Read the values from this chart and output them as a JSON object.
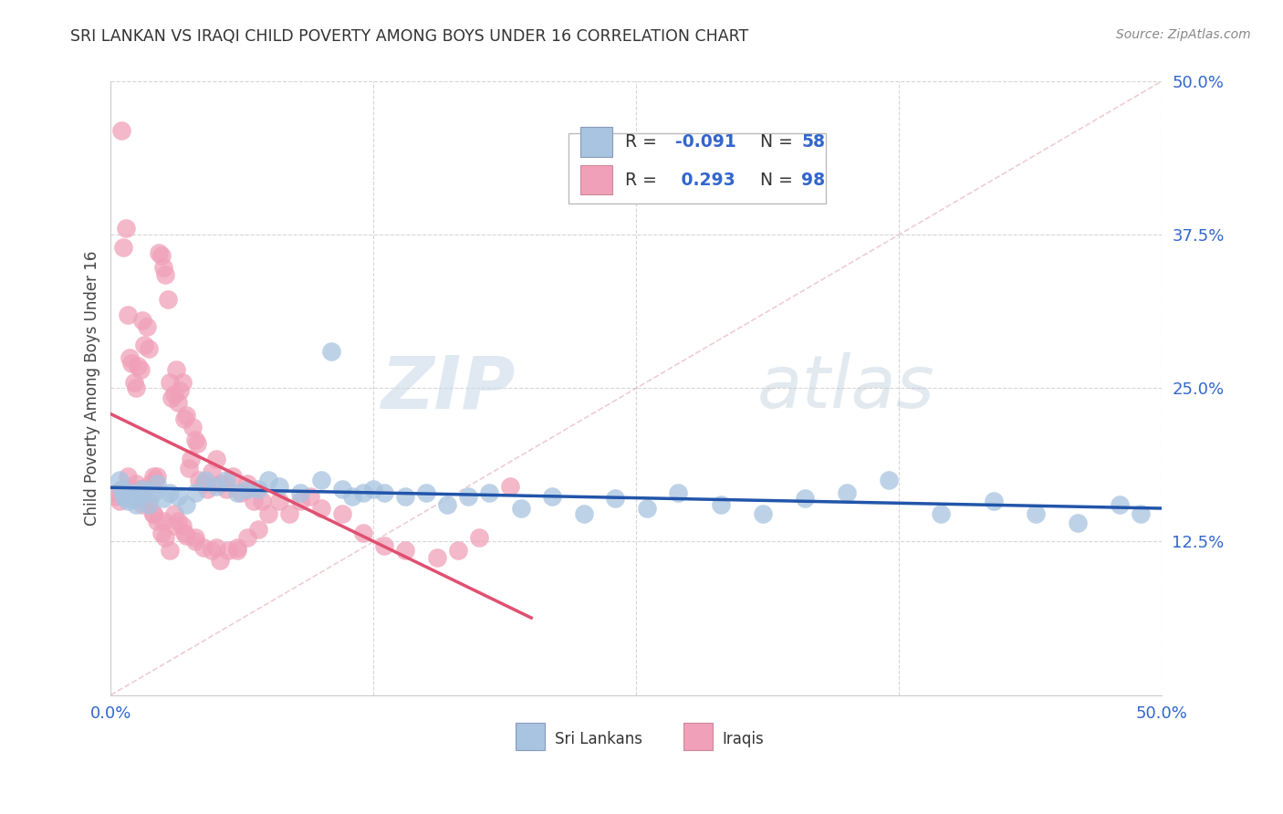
{
  "title": "SRI LANKAN VS IRAQI CHILD POVERTY AMONG BOYS UNDER 16 CORRELATION CHART",
  "source": "Source: ZipAtlas.com",
  "ylabel": "Child Poverty Among Boys Under 16",
  "xlim": [
    0.0,
    0.5
  ],
  "ylim": [
    0.0,
    0.5
  ],
  "xticks": [
    0.0,
    0.125,
    0.25,
    0.375,
    0.5
  ],
  "yticks": [
    0.0,
    0.125,
    0.25,
    0.375,
    0.5
  ],
  "xtick_labels": [
    "0.0%",
    "",
    "",
    "",
    "50.0%"
  ],
  "ytick_labels": [
    "",
    "12.5%",
    "25.0%",
    "37.5%",
    "50.0%"
  ],
  "background_color": "#ffffff",
  "grid_color": "#cccccc",
  "watermark_zip": "ZIP",
  "watermark_atlas": "atlas",
  "sri_lankan_color": "#a8c4e0",
  "iraqi_color": "#f0a0b8",
  "sri_lankan_line_color": "#2255aa",
  "iraqi_line_color": "#e05070",
  "diagonal_color": "#e8b8c0",
  "legend_r_sri": "-0.091",
  "legend_n_sri": "58",
  "legend_r_iraqi": "0.293",
  "legend_n_iraqi": "98",
  "sri_lankan_x": [
    0.004,
    0.005,
    0.006,
    0.007,
    0.008,
    0.009,
    0.01,
    0.011,
    0.012,
    0.013,
    0.015,
    0.016,
    0.018,
    0.02,
    0.022,
    0.025,
    0.028,
    0.032,
    0.036,
    0.04,
    0.045,
    0.05,
    0.055,
    0.06,
    0.065,
    0.07,
    0.075,
    0.08,
    0.09,
    0.1,
    0.105,
    0.11,
    0.115,
    0.12,
    0.125,
    0.13,
    0.14,
    0.15,
    0.16,
    0.17,
    0.18,
    0.195,
    0.21,
    0.225,
    0.24,
    0.255,
    0.27,
    0.29,
    0.31,
    0.33,
    0.35,
    0.37,
    0.395,
    0.42,
    0.44,
    0.46,
    0.48,
    0.49
  ],
  "sri_lankan_y": [
    0.175,
    0.168,
    0.162,
    0.165,
    0.158,
    0.16,
    0.165,
    0.16,
    0.155,
    0.162,
    0.168,
    0.165,
    0.155,
    0.165,
    0.172,
    0.16,
    0.165,
    0.162,
    0.155,
    0.165,
    0.175,
    0.17,
    0.175,
    0.165,
    0.168,
    0.168,
    0.175,
    0.17,
    0.165,
    0.175,
    0.28,
    0.168,
    0.162,
    0.165,
    0.168,
    0.165,
    0.162,
    0.165,
    0.155,
    0.162,
    0.165,
    0.152,
    0.162,
    0.148,
    0.16,
    0.152,
    0.165,
    0.155,
    0.148,
    0.16,
    0.165,
    0.175,
    0.148,
    0.158,
    0.148,
    0.14,
    0.155,
    0.148
  ],
  "iraqi_x": [
    0.002,
    0.003,
    0.004,
    0.005,
    0.006,
    0.007,
    0.008,
    0.009,
    0.01,
    0.011,
    0.012,
    0.013,
    0.014,
    0.015,
    0.016,
    0.017,
    0.018,
    0.019,
    0.02,
    0.021,
    0.022,
    0.023,
    0.024,
    0.025,
    0.026,
    0.027,
    0.028,
    0.029,
    0.03,
    0.031,
    0.032,
    0.033,
    0.034,
    0.035,
    0.036,
    0.037,
    0.038,
    0.039,
    0.04,
    0.041,
    0.042,
    0.044,
    0.046,
    0.048,
    0.05,
    0.052,
    0.055,
    0.058,
    0.062,
    0.065,
    0.068,
    0.072,
    0.075,
    0.08,
    0.085,
    0.09,
    0.095,
    0.1,
    0.11,
    0.12,
    0.13,
    0.14,
    0.155,
    0.165,
    0.175,
    0.19,
    0.006,
    0.008,
    0.01,
    0.012,
    0.014,
    0.016,
    0.018,
    0.02,
    0.022,
    0.024,
    0.026,
    0.028,
    0.03,
    0.032,
    0.034,
    0.036,
    0.04,
    0.044,
    0.048,
    0.052,
    0.056,
    0.06,
    0.065,
    0.07,
    0.015,
    0.02,
    0.025,
    0.03,
    0.035,
    0.04,
    0.05,
    0.06
  ],
  "iraqi_y": [
    0.162,
    0.165,
    0.158,
    0.46,
    0.365,
    0.38,
    0.31,
    0.275,
    0.27,
    0.255,
    0.25,
    0.268,
    0.265,
    0.305,
    0.285,
    0.3,
    0.282,
    0.172,
    0.178,
    0.175,
    0.178,
    0.36,
    0.358,
    0.348,
    0.342,
    0.322,
    0.255,
    0.242,
    0.245,
    0.265,
    0.238,
    0.248,
    0.255,
    0.225,
    0.228,
    0.185,
    0.192,
    0.218,
    0.208,
    0.205,
    0.175,
    0.172,
    0.168,
    0.182,
    0.192,
    0.172,
    0.168,
    0.178,
    0.165,
    0.172,
    0.158,
    0.158,
    0.148,
    0.158,
    0.148,
    0.158,
    0.162,
    0.152,
    0.148,
    0.132,
    0.122,
    0.118,
    0.112,
    0.118,
    0.128,
    0.17,
    0.168,
    0.178,
    0.168,
    0.172,
    0.168,
    0.158,
    0.158,
    0.148,
    0.142,
    0.132,
    0.128,
    0.118,
    0.148,
    0.142,
    0.138,
    0.13,
    0.125,
    0.12,
    0.118,
    0.11,
    0.118,
    0.12,
    0.128,
    0.135,
    0.155,
    0.148,
    0.142,
    0.138,
    0.132,
    0.128,
    0.12,
    0.118
  ]
}
